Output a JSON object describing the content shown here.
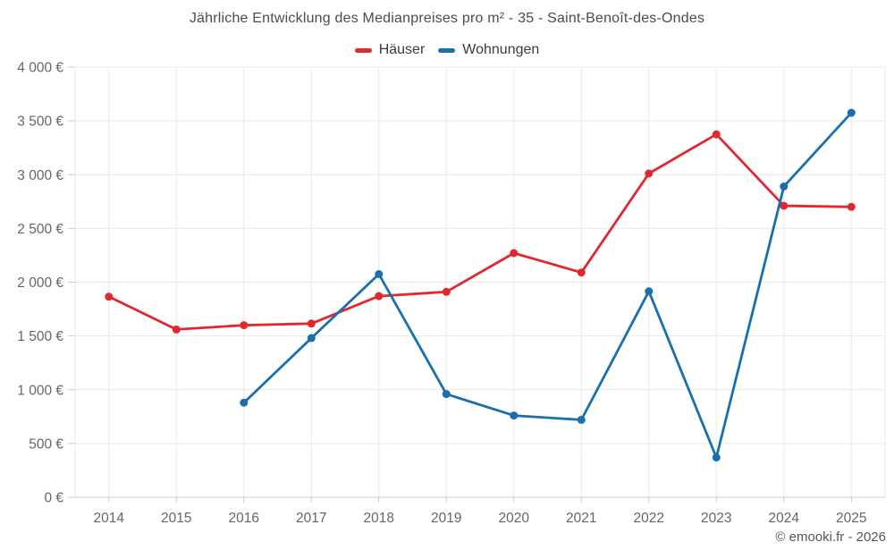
{
  "header": {
    "title": "Jährliche Entwicklung des Medianpreises pro m² - 35 - Saint-Benoît-des-Ondes"
  },
  "footer": {
    "copyright": "© emooki.fr - 2026"
  },
  "colors": {
    "hauser_red": "#e0282f",
    "wohnungen_blue": "#1a6fad",
    "grid_line": "#e9e9e9",
    "axis_line": "#cccccc",
    "tick_mark": "#cccccc",
    "axis_text": "#666666",
    "title_text": "#4c4c4c"
  },
  "chart_data": {
    "type": "line",
    "title": "Jährliche Entwicklung des Medianpreises pro m² - 35 - Saint-Benoît-des-Ondes",
    "x": [
      2014,
      2015,
      2016,
      2017,
      2018,
      2019,
      2020,
      2021,
      2022,
      2023,
      2024,
      2025
    ],
    "series": [
      {
        "id": "haeuser",
        "name": "Häuser",
        "color": "#e0282f",
        "values": [
          1865,
          1560,
          1600,
          1615,
          1870,
          1910,
          2270,
          2090,
          3010,
          3375,
          2710,
          2700
        ]
      },
      {
        "id": "wohnungen",
        "name": "Wohnungen",
        "color": "#1a6fad",
        "values": [
          null,
          null,
          880,
          1480,
          2075,
          960,
          760,
          720,
          1915,
          370,
          2890,
          3575
        ]
      }
    ],
    "ylim": [
      0,
      4000
    ],
    "y_tick_step": 500,
    "y_tick_values": [
      0,
      500,
      1000,
      1500,
      2000,
      2500,
      3000,
      3500,
      4000
    ],
    "y_tick_labels": [
      "0 €",
      "500 €",
      "1 000 €",
      "1 500 €",
      "2 000 €",
      "2 500 €",
      "3 000 €",
      "3 500 €",
      "4 000 €"
    ],
    "grid": true,
    "legend_position": "top"
  }
}
